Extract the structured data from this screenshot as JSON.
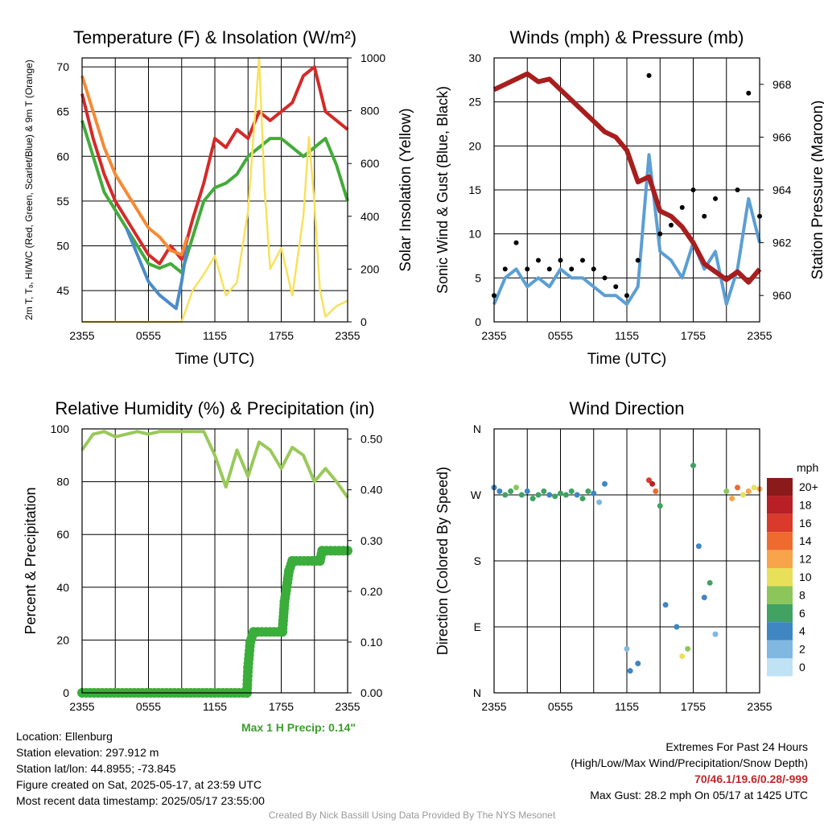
{
  "colors": {
    "red": "#d42a2a",
    "green": "#44ab3b",
    "orange": "#f58a35",
    "blue": "#4a8cc8",
    "yellow": "#f7e25c",
    "maroon": "#a81e1e",
    "wind_blue": "#5b9fd4",
    "rh_green": "#99c95a",
    "precip_green": "#3aad3a"
  },
  "info": {
    "location": "Location: Ellenburg",
    "elevation": "Station elevation: 297.912 m",
    "latlon": "Station lat/lon: 44.8955; -73.845",
    "created": "Figure created on Sat, 2025-05-17, at 23:59 UTC",
    "recent": "Most recent data timestamp: 2025/05/17 23:55:00"
  },
  "extremes": {
    "title": "Extremes For Past 24 Hours",
    "subtitle": "(High/Low/Max Wind/Precipitation/Snow Depth)",
    "values": "70/46.1/19.6/0.28/-999",
    "gust": "Max Gust: 28.2 mph On 05/17 at 1425 UTC"
  },
  "credit": "Created By Nick Bassill Using Data Provided By The NYS Mesonet",
  "precip_note": "Max 1 H Precip: 0.14\"",
  "chart_data": [
    {
      "type": "line",
      "title": "Temperature (F) & Insolation (W/m²)",
      "xlabel": "Time (UTC)",
      "ylabel": "2m T, Tₔ, HI/WC (Red, Green, Scarlet/Blue) & 9m T (Orange)",
      "ylabel_right": "Solar Insolation (Yellow)",
      "x_ticks": [
        "2355",
        "0555",
        "1155",
        "1755",
        "2355"
      ],
      "x_hours": [
        0,
        3,
        6,
        9,
        12,
        15,
        18,
        21,
        24
      ],
      "ylim": [
        41.5,
        71
      ],
      "yticks": [
        45,
        50,
        55,
        60,
        65,
        70
      ],
      "ylim_right": [
        0,
        1000
      ],
      "yticks_right": [
        0,
        200,
        400,
        600,
        800,
        1000
      ],
      "series": [
        {
          "name": "2m T",
          "color_key": "red",
          "axis": "left",
          "x": [
            0,
            1,
            2,
            3,
            4,
            5,
            6,
            7,
            8,
            9,
            10,
            11,
            12,
            13,
            14,
            15,
            16,
            17,
            18,
            19,
            20,
            21,
            22,
            23,
            24
          ],
          "values": [
            67,
            62,
            58,
            55,
            53,
            51,
            49,
            48,
            50,
            48.5,
            53,
            57,
            62,
            61,
            63,
            62,
            65,
            64,
            65,
            66,
            69,
            70,
            65,
            64,
            63
          ]
        },
        {
          "name": "Dewpoint",
          "color_key": "green",
          "axis": "left",
          "x": [
            0,
            1,
            2,
            3,
            4,
            5,
            6,
            7,
            8,
            9,
            10,
            11,
            12,
            13,
            14,
            15,
            16,
            17,
            18,
            19,
            20,
            21,
            22,
            23,
            24
          ],
          "values": [
            64,
            60,
            56,
            54,
            52,
            50,
            48,
            47.5,
            48,
            47,
            51,
            55,
            56.5,
            57,
            58,
            60,
            61,
            62,
            62,
            61,
            60,
            61,
            62,
            59,
            55
          ]
        },
        {
          "name": "WC",
          "color_key": "blue",
          "axis": "left",
          "x": [
            4,
            5,
            6,
            7,
            8,
            8.5,
            9,
            9.5
          ],
          "values": [
            52,
            49,
            46,
            44.5,
            43.5,
            43,
            46,
            50
          ]
        },
        {
          "name": "9m T",
          "color_key": "orange",
          "axis": "left",
          "x": [
            0,
            1,
            2,
            3,
            4,
            5,
            6,
            7,
            8,
            9,
            9.5
          ],
          "values": [
            69,
            65,
            61,
            58,
            56,
            54,
            52,
            51,
            49.5,
            49,
            51
          ]
        },
        {
          "name": "Insolation",
          "color_key": "yellow",
          "axis": "right",
          "x": [
            0,
            9,
            10,
            11,
            12,
            13,
            14,
            15,
            16,
            16.5,
            17,
            18,
            19,
            20,
            20.5,
            21,
            21.5,
            22,
            23,
            24
          ],
          "values": [
            0,
            0,
            120,
            180,
            250,
            100,
            150,
            420,
            1000,
            500,
            200,
            280,
            100,
            400,
            700,
            450,
            120,
            20,
            60,
            80
          ]
        }
      ]
    },
    {
      "type": "line",
      "title": "Winds (mph) & Pressure (mb)",
      "xlabel": "Time (UTC)",
      "ylabel": "Sonic Wind & Gust (Blue, Black)",
      "ylabel_right": "Station Pressure (Maroon)",
      "x_ticks": [
        "2355",
        "0555",
        "1155",
        "1755",
        "2355"
      ],
      "x_hours": [
        0,
        3,
        6,
        9,
        12,
        15,
        18,
        21,
        24
      ],
      "ylim": [
        0,
        30
      ],
      "yticks": [
        0,
        5,
        10,
        15,
        20,
        25,
        30
      ],
      "ylim_right": [
        959,
        969
      ],
      "yticks_right": [
        960,
        962,
        964,
        966,
        968
      ],
      "series": [
        {
          "name": "Wind",
          "color_key": "wind_blue",
          "axis": "left",
          "x": [
            0,
            1,
            2,
            3,
            4,
            5,
            6,
            7,
            8,
            9,
            10,
            11,
            12,
            13,
            14,
            15,
            16,
            17,
            18,
            19,
            20,
            21,
            22,
            23,
            24
          ],
          "values": [
            2,
            5,
            6,
            4,
            5,
            4,
            6,
            5,
            5,
            4,
            3,
            3,
            2,
            4,
            19,
            8,
            7,
            5,
            9,
            6,
            8,
            2,
            6,
            14,
            9
          ]
        },
        {
          "name": "Gust",
          "color_key": "black",
          "axis": "left",
          "style": "dots",
          "x": [
            0,
            1,
            2,
            3,
            4,
            5,
            6,
            7,
            8,
            9,
            10,
            11,
            12,
            13,
            14,
            15,
            16,
            17,
            18,
            19,
            20,
            21,
            22,
            23,
            24
          ],
          "values": [
            3,
            6,
            9,
            6,
            7,
            6,
            7,
            6,
            7,
            6,
            5,
            4,
            3,
            7,
            28,
            10,
            11,
            13,
            15,
            12,
            14,
            5,
            15,
            26,
            12
          ]
        },
        {
          "name": "Pressure",
          "color_key": "maroon",
          "axis": "right",
          "x": [
            0,
            1,
            2,
            3,
            4,
            5,
            6,
            7,
            8,
            9,
            10,
            11,
            12,
            13,
            14,
            15,
            16,
            17,
            18,
            19,
            20,
            21,
            22,
            23,
            24
          ],
          "values": [
            967.8,
            968.0,
            968.2,
            968.4,
            968.1,
            968.2,
            967.8,
            967.4,
            967.0,
            966.6,
            966.2,
            966.0,
            965.5,
            964.3,
            964.5,
            963.2,
            963.0,
            962.6,
            962.0,
            961.2,
            960.9,
            960.6,
            960.9,
            960.5,
            961.0
          ]
        }
      ]
    },
    {
      "type": "line",
      "title": "Relative Humidity (%) & Precipitation (in)",
      "xlabel": "",
      "ylabel": "Percent & Precipitation",
      "x_ticks": [
        "2355",
        "0555",
        "1155",
        "1755",
        "2355"
      ],
      "x_hours": [
        0,
        3,
        6,
        9,
        12,
        15,
        18,
        21,
        24
      ],
      "ylim": [
        0,
        100
      ],
      "yticks": [
        0,
        20,
        40,
        60,
        80,
        100
      ],
      "ylim_right": [
        0,
        0.52
      ],
      "yticks_right": [
        "0.00",
        "0.10",
        "0.20",
        "0.30",
        "0.40",
        "0.50"
      ],
      "series": [
        {
          "name": "RH",
          "color_key": "rh_green",
          "axis": "left",
          "x": [
            0,
            1,
            2,
            3,
            4,
            5,
            6,
            7,
            8,
            9,
            10,
            11,
            12,
            13,
            14,
            15,
            16,
            17,
            18,
            19,
            20,
            21,
            22,
            23,
            24
          ],
          "values": [
            92,
            98,
            99,
            97,
            98,
            99,
            98,
            99,
            99,
            99,
            99,
            99,
            90,
            78,
            92,
            82,
            95,
            92,
            85,
            93,
            90,
            80,
            85,
            80,
            74
          ]
        },
        {
          "name": "Precipitation",
          "color_key": "precip_green",
          "axis": "right",
          "style": "dots",
          "x": [
            0,
            14.9,
            15.0,
            15.2,
            15.5,
            18.1,
            18.3,
            18.7,
            19.0,
            21.5,
            21.7,
            24
          ],
          "values": [
            0,
            0,
            0.05,
            0.1,
            0.12,
            0.12,
            0.18,
            0.24,
            0.26,
            0.26,
            0.28,
            0.28
          ]
        }
      ]
    },
    {
      "type": "scatter",
      "title": "Wind Direction",
      "xlabel": "",
      "ylabel": "Direction (Colored By Speed)",
      "x_ticks": [
        "2355",
        "0555",
        "1155",
        "1755",
        "2355"
      ],
      "x_hours": [
        0,
        3,
        6,
        9,
        12,
        15,
        18,
        21,
        24
      ],
      "y_ticks": [
        "N",
        "E",
        "S",
        "W",
        "N"
      ],
      "ylim": [
        0,
        360
      ],
      "colorbar_title": "mph",
      "colorbar_labels": [
        "20+",
        "18",
        "16",
        "14",
        "12",
        "10",
        "8",
        "6",
        "4",
        "2",
        "0"
      ],
      "colorbar_colors": [
        "#8b1a1a",
        "#b82025",
        "#d93a2b",
        "#ef6a2e",
        "#f7a44a",
        "#e9e05a",
        "#8cc65a",
        "#41a262",
        "#3f86c2",
        "#80b8e2",
        "#bfe2f5"
      ],
      "points": {
        "x": [
          0,
          0.5,
          1,
          1.5,
          2,
          2.5,
          3,
          3.5,
          4,
          4.5,
          5,
          5.5,
          6,
          6.5,
          7,
          7.5,
          8,
          8.5,
          9,
          9.5,
          10,
          12,
          12.3,
          13,
          14,
          14.3,
          14.6,
          15,
          15.5,
          16.5,
          17,
          17.5,
          18,
          18.5,
          19,
          19.5,
          20,
          21,
          21.5,
          22,
          22.5,
          23,
          23.5,
          24
        ],
        "y": [
          280,
          275,
          270,
          275,
          280,
          270,
          275,
          265,
          270,
          275,
          270,
          268,
          272,
          270,
          275,
          270,
          265,
          275,
          272,
          260,
          285,
          60,
          30,
          40,
          290,
          285,
          275,
          255,
          120,
          90,
          50,
          60,
          310,
          200,
          130,
          150,
          80,
          275,
          265,
          280,
          270,
          275,
          280,
          278
        ],
        "speed": [
          3,
          4,
          5,
          6,
          7,
          5,
          4,
          6,
          5,
          6,
          4,
          5,
          6,
          5,
          6,
          4,
          5,
          6,
          4,
          2,
          3,
          2,
          4,
          3,
          16,
          18,
          14,
          5,
          4,
          3,
          10,
          8,
          6,
          3,
          4,
          5,
          2,
          8,
          12,
          14,
          10,
          12,
          9,
          11
        ]
      }
    }
  ]
}
